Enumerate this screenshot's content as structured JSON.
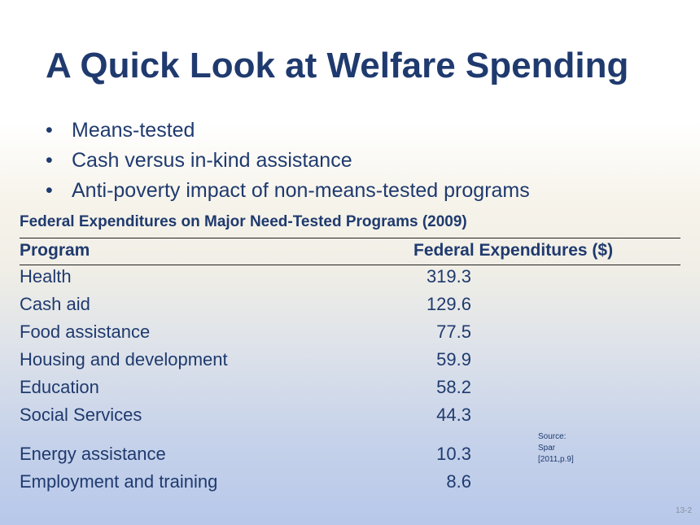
{
  "slide": {
    "title": "A Quick Look at Welfare Spending",
    "bullets": [
      "Means-tested",
      "Cash versus in-kind assistance",
      "Anti-poverty impact of non-means-tested programs"
    ],
    "bullet_glyph": "•",
    "page_number": "13-2"
  },
  "table": {
    "caption": "Federal Expenditures on Major Need-Tested Programs (2009)",
    "columns": [
      "Program",
      "Federal Expenditures ($)"
    ],
    "rows": [
      {
        "program": "Health",
        "value": "319.3"
      },
      {
        "program": "Cash aid",
        "value": "129.6"
      },
      {
        "program": "Food assistance",
        "value": "77.5"
      },
      {
        "program": "Housing and development",
        "value": "59.9"
      },
      {
        "program": "Education",
        "value": "58.2"
      },
      {
        "program": "Social Services",
        "value": "44.3"
      },
      {
        "program": "Energy assistance",
        "value": "10.3"
      },
      {
        "program": "Employment and training",
        "value": "8.6"
      }
    ]
  },
  "source": {
    "lines": [
      "Source:",
      "Spar",
      "[2011,p.9]"
    ]
  }
}
